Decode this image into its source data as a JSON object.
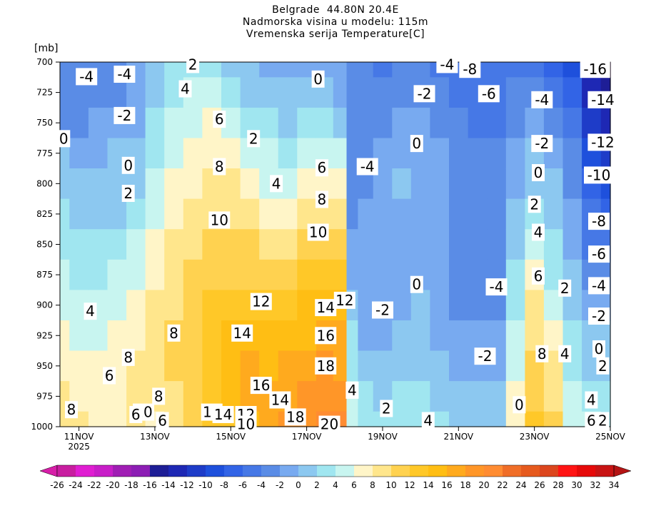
{
  "header": {
    "line1": "Belgrade  44.80N 20.4E",
    "line2": "Nadmorska visina u modelu: 115m",
    "line3": "Vremenska serija Temperature[C]",
    "y_unit": "[mb]"
  },
  "chart_data": {
    "type": "heatmap",
    "title": "Vremenska serija Temperature[C]",
    "ylabel": "[mb]",
    "y_axis": {
      "ticks": [
        700,
        725,
        750,
        775,
        800,
        825,
        850,
        875,
        900,
        925,
        950,
        975,
        1000
      ],
      "ylim": [
        1000,
        700
      ]
    },
    "x_axis": {
      "ticks": [
        "11NOV",
        "13NOV",
        "15NOV",
        "17NOV",
        "19NOV",
        "21NOV",
        "23NOV",
        "25NOV"
      ],
      "tick_days": [
        11,
        13,
        15,
        17,
        19,
        21,
        23,
        25
      ],
      "sub_label": "2025",
      "xlim_days": [
        10.5,
        25
      ]
    },
    "colorbar": {
      "levels": [
        -26,
        -24,
        -22,
        -20,
        -18,
        -16,
        -14,
        -12,
        -10,
        -8,
        -6,
        -4,
        -2,
        0,
        2,
        4,
        6,
        8,
        10,
        12,
        14,
        16,
        18,
        20,
        22,
        24,
        26,
        28,
        30,
        32,
        34
      ],
      "labels": [
        "-26",
        "-24",
        "-22",
        "-20",
        "-18",
        "-16",
        "-14",
        "-12",
        "-10",
        "-8",
        "-6",
        "-4",
        "-2",
        "0",
        "2",
        "4",
        "6",
        "8",
        "10",
        "12",
        "14",
        "16",
        "18",
        "20",
        "22",
        "24",
        "26",
        "28",
        "30",
        "32",
        "34"
      ],
      "colors": [
        "#c81ea0",
        "#e01ed2",
        "#c81ec8",
        "#a01eb4",
        "#8c1eb4",
        "#1e1e96",
        "#1e28b4",
        "#1e3cc8",
        "#1e50dc",
        "#3264e6",
        "#4678e6",
        "#5a8ce6",
        "#78aaf0",
        "#8cc8f0",
        "#a0e6f0",
        "#c8f5f0",
        "#fff5c8",
        "#ffe68c",
        "#ffd250",
        "#ffc828",
        "#ffbe14",
        "#ffaa1e",
        "#ff9628",
        "#ff8c32",
        "#f06e28",
        "#e65a1e",
        "#dc461e",
        "#ff1414",
        "#e60a0a",
        "#c81414"
      ],
      "under_color": "#d71ea8",
      "over_color": "#b41414"
    },
    "series": [
      {
        "day": 10.5,
        "values": [
          -4,
          -4,
          -3,
          0,
          1,
          2,
          3,
          4,
          5,
          6,
          7,
          8,
          9
        ]
      },
      {
        "day": 11.0,
        "values": [
          -4,
          -4,
          -3,
          -1,
          0,
          1,
          2,
          3,
          4,
          5,
          6,
          7,
          8
        ]
      },
      {
        "day": 11.5,
        "values": [
          -4,
          -3,
          -2,
          -1,
          0,
          1,
          2,
          3,
          4,
          5,
          6,
          7,
          7
        ]
      },
      {
        "day": 12.0,
        "values": [
          -3,
          -3,
          -2,
          0,
          0,
          1,
          2,
          4,
          5,
          6,
          7,
          7,
          7
        ]
      },
      {
        "day": 12.5,
        "values": [
          -2,
          -2,
          -1,
          0,
          1,
          2,
          4,
          5,
          6,
          7,
          8,
          9,
          9
        ]
      },
      {
        "day": 13.0,
        "values": [
          0,
          1,
          2,
          3,
          4,
          5,
          6,
          7,
          8,
          8,
          9,
          8,
          7
        ]
      },
      {
        "day": 13.5,
        "values": [
          2,
          3,
          4,
          5,
          6,
          7,
          8,
          9,
          9,
          10,
          10,
          9,
          8
        ]
      },
      {
        "day": 14.0,
        "values": [
          3,
          4,
          5,
          6,
          7,
          8,
          9,
          10,
          10,
          11,
          11,
          11,
          10
        ]
      },
      {
        "day": 14.5,
        "values": [
          2,
          4,
          6,
          7,
          8,
          9,
          10,
          11,
          12,
          13,
          13,
          12,
          12
        ]
      },
      {
        "day": 15.0,
        "values": [
          1,
          3,
          5,
          7,
          8,
          9,
          10,
          11,
          13,
          14,
          15,
          15,
          13
        ]
      },
      {
        "day": 15.5,
        "values": [
          0,
          1,
          3,
          5,
          7,
          8,
          10,
          11,
          12,
          14,
          16,
          16,
          15
        ]
      },
      {
        "day": 16.0,
        "values": [
          -1,
          0,
          2,
          4,
          5,
          7,
          9,
          11,
          12,
          14,
          15,
          16,
          16
        ]
      },
      {
        "day": 16.5,
        "values": [
          -1,
          0,
          1,
          3,
          5,
          7,
          9,
          11,
          13,
          15,
          16,
          17,
          18
        ]
      },
      {
        "day": 17.0,
        "values": [
          -1,
          0,
          2,
          4,
          6,
          8,
          10,
          12,
          14,
          15,
          17,
          18,
          19
        ]
      },
      {
        "day": 17.5,
        "values": [
          -1,
          0,
          3,
          5,
          7,
          9,
          11,
          13,
          14,
          16,
          18,
          19,
          20
        ]
      },
      {
        "day": 17.9,
        "values": [
          -2,
          -1,
          1,
          4,
          7,
          9,
          11,
          12,
          14,
          16,
          17,
          19,
          20
        ]
      },
      {
        "day": 18.2,
        "values": [
          -3,
          -3,
          -3,
          -4,
          -3,
          -3,
          -2,
          -1,
          0,
          2,
          3,
          4,
          4
        ]
      },
      {
        "day": 18.5,
        "values": [
          -3,
          -3,
          -3,
          -3,
          -3,
          -2,
          -2,
          -2,
          -2,
          -1,
          0,
          2,
          3
        ]
      },
      {
        "day": 19.0,
        "values": [
          -5,
          -4,
          -3,
          -2,
          -2,
          -2,
          -2,
          -2,
          -2,
          -1,
          0,
          1,
          3
        ]
      },
      {
        "day": 19.5,
        "values": [
          -4,
          -3,
          -2,
          -1,
          0,
          -1,
          -1,
          -1,
          -1,
          0,
          1,
          2,
          3
        ]
      },
      {
        "day": 20.0,
        "values": [
          -4,
          -3,
          -2,
          -1,
          -1,
          -1,
          -1,
          -1,
          0,
          1,
          1,
          2,
          3
        ]
      },
      {
        "day": 20.5,
        "values": [
          -5,
          -4,
          -3,
          -2,
          -2,
          -2,
          -2,
          -2,
          -2,
          -1,
          0,
          1,
          2
        ]
      },
      {
        "day": 21.0,
        "values": [
          -5,
          -5,
          -4,
          -4,
          -3,
          -3,
          -3,
          -3,
          -3,
          -2,
          -1,
          0,
          1
        ]
      },
      {
        "day": 21.5,
        "values": [
          -6,
          -6,
          -5,
          -4,
          -4,
          -4,
          -3,
          -3,
          -3,
          -2,
          -1,
          0,
          1
        ]
      },
      {
        "day": 22.0,
        "values": [
          -6,
          -6,
          -5,
          -4,
          -3,
          -3,
          -3,
          -3,
          -3,
          -2,
          -1,
          0,
          1
        ]
      },
      {
        "day": 22.5,
        "values": [
          -5,
          -4,
          -3,
          -2,
          -1,
          0,
          1,
          2,
          3,
          4,
          5,
          6,
          7
        ]
      },
      {
        "day": 23.0,
        "values": [
          -5,
          -3,
          -1,
          0,
          1,
          3,
          5,
          7,
          8,
          9,
          10,
          11,
          12
        ]
      },
      {
        "day": 23.5,
        "values": [
          -7,
          -5,
          -3,
          -2,
          0,
          1,
          2,
          3,
          5,
          6,
          8,
          9,
          10
        ]
      },
      {
        "day": 24.0,
        "values": [
          -10,
          -8,
          -6,
          -4,
          -3,
          -2,
          -1,
          0,
          1,
          2,
          3,
          4,
          5
        ]
      },
      {
        "day": 24.5,
        "values": [
          -16,
          -14,
          -12,
          -10,
          -8,
          -6,
          -5,
          -3,
          -2,
          0,
          1,
          3,
          5
        ]
      },
      {
        "day": 25.0,
        "values": [
          -17,
          -15,
          -13,
          -11,
          -9,
          -7,
          -5,
          -3,
          -2,
          0,
          1,
          2,
          3
        ]
      }
    ],
    "contour_labels": [
      {
        "text": "-4",
        "day": 11.2,
        "p": 712
      },
      {
        "text": "-4",
        "day": 12.2,
        "p": 710
      },
      {
        "text": "-2",
        "day": 12.2,
        "p": 744
      },
      {
        "text": "0",
        "day": 10.6,
        "p": 763
      },
      {
        "text": "0",
        "day": 12.3,
        "p": 785
      },
      {
        "text": "2",
        "day": 12.3,
        "p": 808
      },
      {
        "text": "4",
        "day": 11.3,
        "p": 905
      },
      {
        "text": "6",
        "day": 11.8,
        "p": 958
      },
      {
        "text": "8",
        "day": 12.3,
        "p": 943
      },
      {
        "text": "8",
        "day": 13.5,
        "p": 923
      },
      {
        "text": "8",
        "day": 10.8,
        "p": 986
      },
      {
        "text": "2",
        "day": 14.0,
        "p": 702
      },
      {
        "text": "4",
        "day": 13.8,
        "p": 722
      },
      {
        "text": "6",
        "day": 14.7,
        "p": 747
      },
      {
        "text": "8",
        "day": 14.7,
        "p": 786
      },
      {
        "text": "10",
        "day": 14.7,
        "p": 830
      },
      {
        "text": "12",
        "day": 15.8,
        "p": 897
      },
      {
        "text": "14",
        "day": 15.3,
        "p": 923
      },
      {
        "text": "16",
        "day": 15.8,
        "p": 966
      },
      {
        "text": "2",
        "day": 15.6,
        "p": 763
      },
      {
        "text": "4",
        "day": 16.2,
        "p": 800
      },
      {
        "text": "6",
        "day": 17.4,
        "p": 787
      },
      {
        "text": "8",
        "day": 17.4,
        "p": 813
      },
      {
        "text": "10",
        "day": 17.3,
        "p": 840
      },
      {
        "text": "14",
        "day": 17.5,
        "p": 902
      },
      {
        "text": "16",
        "day": 17.5,
        "p": 925
      },
      {
        "text": "18",
        "day": 17.5,
        "p": 950
      },
      {
        "text": "12",
        "day": 18.0,
        "p": 896
      },
      {
        "text": "0",
        "day": 17.3,
        "p": 714
      },
      {
        "text": "-4",
        "day": 18.6,
        "p": 786
      },
      {
        "text": "-2",
        "day": 19.0,
        "p": 904
      },
      {
        "text": "0",
        "day": 19.9,
        "p": 767
      },
      {
        "text": "0",
        "day": 19.9,
        "p": 883
      },
      {
        "text": "-2",
        "day": 20.1,
        "p": 726
      },
      {
        "text": "-4",
        "day": 20.7,
        "p": 702
      },
      {
        "text": "-8",
        "day": 21.3,
        "p": 706
      },
      {
        "text": "-6",
        "day": 21.8,
        "p": 726
      },
      {
        "text": "-4",
        "day": 22.0,
        "p": 885
      },
      {
        "text": "-2",
        "day": 21.7,
        "p": 942
      },
      {
        "text": "-4",
        "day": 23.2,
        "p": 731
      },
      {
        "text": "-2",
        "day": 23.2,
        "p": 767
      },
      {
        "text": "0",
        "day": 23.1,
        "p": 791
      },
      {
        "text": "2",
        "day": 23.0,
        "p": 817
      },
      {
        "text": "4",
        "day": 23.1,
        "p": 840
      },
      {
        "text": "6",
        "day": 23.1,
        "p": 876
      },
      {
        "text": "2",
        "day": 23.8,
        "p": 886
      },
      {
        "text": "8",
        "day": 23.2,
        "p": 940
      },
      {
        "text": "4",
        "day": 23.8,
        "p": 940
      },
      {
        "text": "0",
        "day": 22.6,
        "p": 982
      },
      {
        "text": "-16",
        "day": 24.6,
        "p": 706
      },
      {
        "text": "-14",
        "day": 24.8,
        "p": 731
      },
      {
        "text": "-12",
        "day": 24.8,
        "p": 766
      },
      {
        "text": "-10",
        "day": 24.7,
        "p": 793
      },
      {
        "text": "-8",
        "day": 24.7,
        "p": 831
      },
      {
        "text": "-6",
        "day": 24.7,
        "p": 858
      },
      {
        "text": "-4",
        "day": 24.7,
        "p": 884
      },
      {
        "text": "-2",
        "day": 24.7,
        "p": 909
      },
      {
        "text": "0",
        "day": 24.7,
        "p": 936
      },
      {
        "text": "2",
        "day": 24.8,
        "p": 950
      },
      {
        "text": "4",
        "day": 24.5,
        "p": 978
      },
      {
        "text": "6",
        "day": 24.5,
        "p": 995
      },
      {
        "text": "2",
        "day": 24.8,
        "p": 995
      },
      {
        "text": "4",
        "day": 18.2,
        "p": 970
      },
      {
        "text": "2",
        "day": 19.1,
        "p": 985
      },
      {
        "text": "4",
        "day": 20.2,
        "p": 995
      },
      {
        "text": "10",
        "day": 12.7,
        "p": 988
      },
      {
        "text": "6",
        "day": 12.5,
        "p": 990
      },
      {
        "text": "8",
        "day": 13.1,
        "p": 975
      },
      {
        "text": "6",
        "day": 13.2,
        "p": 995
      },
      {
        "text": "11",
        "day": 14.5,
        "p": 988
      },
      {
        "text": "14",
        "day": 14.8,
        "p": 990
      },
      {
        "text": "12",
        "day": 15.4,
        "p": 990
      },
      {
        "text": "10",
        "day": 15.4,
        "p": 998
      },
      {
        "text": "14",
        "day": 16.3,
        "p": 978
      },
      {
        "text": "18",
        "day": 16.7,
        "p": 992
      },
      {
        "text": "20",
        "day": 17.6,
        "p": 998
      }
    ]
  }
}
